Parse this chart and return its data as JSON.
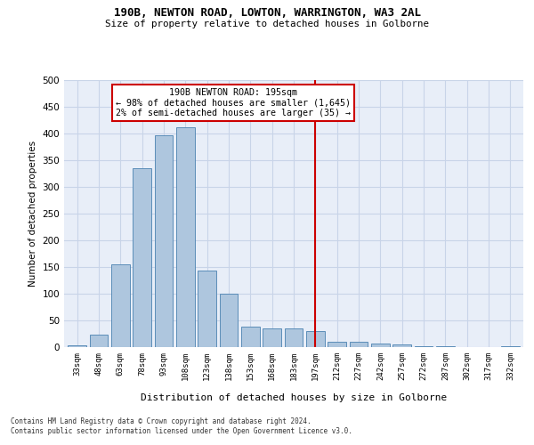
{
  "title_line1": "190B, NEWTON ROAD, LOWTON, WARRINGTON, WA3 2AL",
  "title_line2": "Size of property relative to detached houses in Golborne",
  "xlabel": "Distribution of detached houses by size in Golborne",
  "ylabel": "Number of detached properties",
  "categories": [
    "33sqm",
    "48sqm",
    "63sqm",
    "78sqm",
    "93sqm",
    "108sqm",
    "123sqm",
    "138sqm",
    "153sqm",
    "168sqm",
    "183sqm",
    "197sqm",
    "212sqm",
    "227sqm",
    "242sqm",
    "257sqm",
    "272sqm",
    "287sqm",
    "302sqm",
    "317sqm",
    "332sqm"
  ],
  "values": [
    3,
    24,
    155,
    335,
    397,
    412,
    144,
    100,
    38,
    35,
    35,
    30,
    10,
    10,
    7,
    5,
    2,
    1,
    0,
    0,
    2
  ],
  "bar_color": "#aec6de",
  "bar_edge_color": "#5b8db8",
  "vline_idx": 11,
  "annotation_line1": "190B NEWTON ROAD: 195sqm",
  "annotation_line2": "← 98% of detached houses are smaller (1,645)",
  "annotation_line3": "2% of semi-detached houses are larger (35) →",
  "vline_color": "#cc0000",
  "annotation_box_edge_color": "#cc0000",
  "ylim": [
    0,
    500
  ],
  "yticks": [
    0,
    50,
    100,
    150,
    200,
    250,
    300,
    350,
    400,
    450,
    500
  ],
  "grid_color": "#c8d4e8",
  "bg_color": "#e8eef8",
  "footer_line1": "Contains HM Land Registry data © Crown copyright and database right 2024.",
  "footer_line2": "Contains public sector information licensed under the Open Government Licence v3.0."
}
